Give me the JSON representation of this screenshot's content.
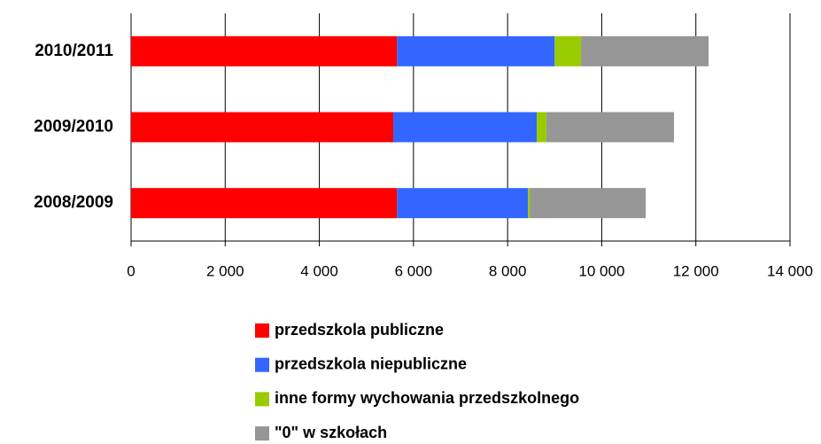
{
  "chart_data": {
    "type": "bar",
    "orientation": "horizontal",
    "stacked": true,
    "categories": [
      "2010/2011",
      "2009/2010",
      "2008/2009"
    ],
    "series": [
      {
        "name": "przedszkola publiczne",
        "color": "#ff0000",
        "values": [
          5650,
          5570,
          5650
        ]
      },
      {
        "name": "przedszkola niepubliczne",
        "color": "#3366ff",
        "values": [
          3350,
          3050,
          2780
        ]
      },
      {
        "name": "inne formy wychowania przedszkolnego",
        "color": "#99cc00",
        "values": [
          560,
          205,
          40
        ]
      },
      {
        "name": "\"0\" w szkołach",
        "color": "#969696",
        "values": [
          2710,
          2710,
          2465
        ]
      }
    ],
    "xlim": [
      0,
      14000
    ],
    "xticks": [
      0,
      {
        "value": 2000,
        "label": "2 000"
      },
      {
        "value": 4000,
        "label": "4 000"
      },
      {
        "value": 6000,
        "label": "6 000"
      },
      {
        "value": 8000,
        "label": "8 000"
      },
      {
        "value": 10000,
        "label": "10 000"
      },
      {
        "value": 12000,
        "label": "12 000"
      },
      {
        "value": 14000,
        "label": "14 000"
      }
    ],
    "grid": true,
    "legend": "bottom"
  }
}
